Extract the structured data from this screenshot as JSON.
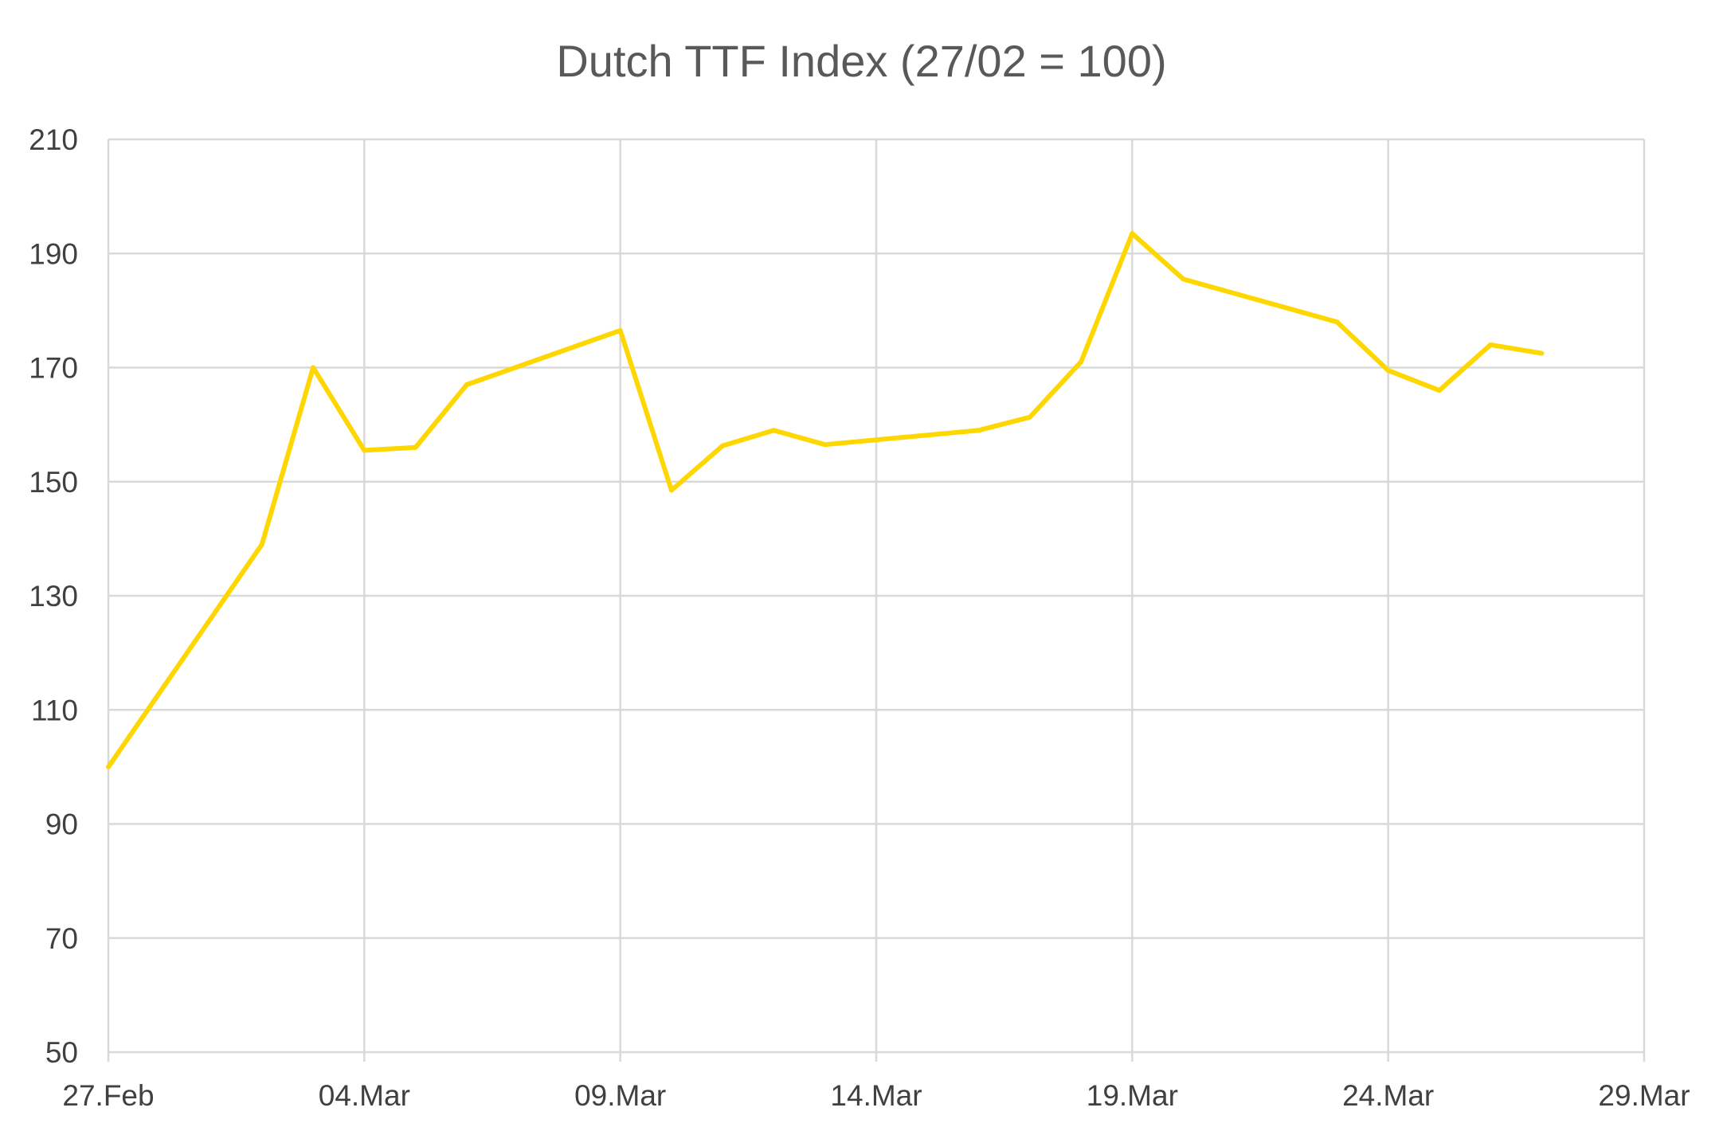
{
  "chart_data": {
    "type": "line",
    "title": "Dutch TTF Index (27/02 = 100)",
    "xlabel": "",
    "ylabel": "",
    "ylim": [
      50,
      210
    ],
    "y_ticks": [
      50,
      70,
      90,
      110,
      130,
      150,
      170,
      190,
      210
    ],
    "x_range": [
      "2026-02-27",
      "2026-03-29"
    ],
    "x_ticks": [
      {
        "date": "2026-02-27",
        "label": "27.Feb"
      },
      {
        "date": "2026-03-04",
        "label": "04.Mar"
      },
      {
        "date": "2026-03-09",
        "label": "09.Mar"
      },
      {
        "date": "2026-03-14",
        "label": "14.Mar"
      },
      {
        "date": "2026-03-19",
        "label": "19.Mar"
      },
      {
        "date": "2026-03-24",
        "label": "24.Mar"
      },
      {
        "date": "2026-03-29",
        "label": "29.Mar"
      }
    ],
    "grid": true,
    "series_color": "#FFD700",
    "series": [
      {
        "name": "",
        "points": [
          {
            "x": "2026-02-27",
            "y": 100
          },
          {
            "x": "2026-03-02",
            "y": 139
          },
          {
            "x": "2026-03-03",
            "y": 170
          },
          {
            "x": "2026-03-04",
            "y": 155.5
          },
          {
            "x": "2026-03-05",
            "y": 156
          },
          {
            "x": "2026-03-06",
            "y": 167
          },
          {
            "x": "2026-03-09",
            "y": 176.5
          },
          {
            "x": "2026-03-10",
            "y": 148.5
          },
          {
            "x": "2026-03-11",
            "y": 156.3
          },
          {
            "x": "2026-03-12",
            "y": 159
          },
          {
            "x": "2026-03-13",
            "y": 156.5
          },
          {
            "x": "2026-03-16",
            "y": 159
          },
          {
            "x": "2026-03-17",
            "y": 161.3
          },
          {
            "x": "2026-03-18",
            "y": 171
          },
          {
            "x": "2026-03-19",
            "y": 193.5
          },
          {
            "x": "2026-03-20",
            "y": 185.5
          },
          {
            "x": "2026-03-23",
            "y": 178
          },
          {
            "x": "2026-03-24",
            "y": 169.5
          },
          {
            "x": "2026-03-25",
            "y": 166
          },
          {
            "x": "2026-03-26",
            "y": 174
          },
          {
            "x": "2026-03-27",
            "y": 172.5
          }
        ]
      }
    ]
  }
}
